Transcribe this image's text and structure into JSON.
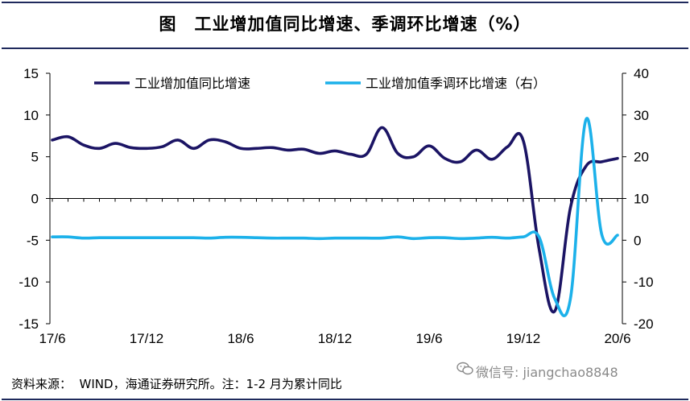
{
  "title": "图　工业增加值同比增速、季调环比增速（%）",
  "chart_data": {
    "type": "line",
    "x_tick_labels": [
      "17/6",
      "17/12",
      "18/6",
      "18/12",
      "19/6",
      "19/12",
      "20/6"
    ],
    "x": [
      "17/6",
      "17/7",
      "17/8",
      "17/9",
      "17/10",
      "17/11",
      "17/12",
      "18/1",
      "18/2",
      "18/3",
      "18/4",
      "18/5",
      "18/6",
      "18/7",
      "18/8",
      "18/9",
      "18/10",
      "18/11",
      "18/12",
      "19/1",
      "19/2",
      "19/3",
      "19/4",
      "19/5",
      "19/6",
      "19/7",
      "19/8",
      "19/9",
      "19/10",
      "19/11",
      "19/12",
      "20/1",
      "20/2",
      "20/3",
      "20/4",
      "20/5",
      "20/6"
    ],
    "left_axis": {
      "ylim": [
        -15,
        15
      ],
      "ticks": [
        "15",
        "10",
        "5",
        "0",
        "-5",
        "-10",
        "-15"
      ]
    },
    "right_axis": {
      "ylim": [
        -20,
        40
      ],
      "ticks": [
        "40",
        "30",
        "20",
        "10",
        "0",
        "-10",
        "-20"
      ]
    },
    "series": [
      {
        "name": "工业增加值同比增速",
        "axis": "left",
        "color": "#1b1464",
        "values": [
          7.0,
          7.4,
          6.4,
          6.0,
          6.6,
          6.1,
          6.0,
          6.2,
          7.0,
          6.0,
          7.0,
          6.8,
          6.0,
          6.0,
          6.1,
          5.8,
          5.9,
          5.4,
          5.7,
          5.3,
          5.3,
          8.5,
          5.4,
          5.0,
          6.3,
          4.8,
          4.4,
          5.8,
          4.7,
          6.2,
          6.9,
          -6.0,
          -13.5,
          -1.1,
          3.9,
          4.4,
          4.8
        ]
      },
      {
        "name": "工业增加值季调环比增速（右）",
        "axis": "right",
        "color": "#1cb1ea",
        "values": [
          0.8,
          0.8,
          0.5,
          0.6,
          0.6,
          0.6,
          0.6,
          0.6,
          0.6,
          0.6,
          0.5,
          0.7,
          0.7,
          0.6,
          0.5,
          0.5,
          0.5,
          0.4,
          0.5,
          0.5,
          0.5,
          0.5,
          0.8,
          0.4,
          0.6,
          0.6,
          0.4,
          0.5,
          0.7,
          0.5,
          0.8,
          0.8,
          -14.0,
          -14.0,
          29.0,
          1.3,
          1.2
        ]
      }
    ],
    "grid": false,
    "legend_position": "top"
  },
  "footer": {
    "source": "资料来源：  WIND，海通证券研究所。注：1-2 月为累计同比",
    "watermark": "微信号: jiangchao8848"
  },
  "colors": {
    "title_rule": "#1f2a5c",
    "axis": "#000000"
  }
}
